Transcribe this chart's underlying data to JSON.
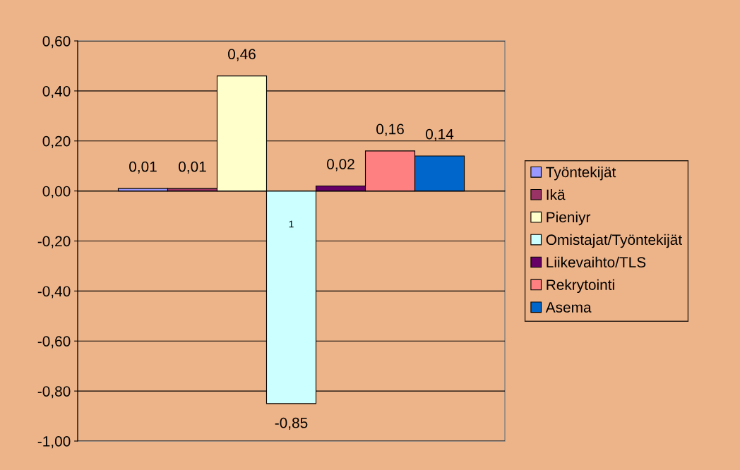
{
  "chart_data": {
    "type": "bar",
    "categories": [
      "1"
    ],
    "series": [
      {
        "name": "Työntekijät",
        "color": "#9999ff",
        "values": [
          0.01
        ],
        "value_labels": [
          "0,01"
        ]
      },
      {
        "name": "Ikä",
        "color": "#993366",
        "values": [
          0.01
        ],
        "value_labels": [
          "0,01"
        ]
      },
      {
        "name": "Pieniyr",
        "color": "#ffffcc",
        "values": [
          0.46
        ],
        "value_labels": [
          "0,46"
        ]
      },
      {
        "name": "Omistajat/Työntekijät",
        "color": "#ccffff",
        "values": [
          -0.85
        ],
        "value_labels": [
          "-0,85"
        ]
      },
      {
        "name": "Liikevaihto/TLS",
        "color": "#660066",
        "values": [
          0.02
        ],
        "value_labels": [
          "0,02"
        ]
      },
      {
        "name": "Rekrytointi",
        "color": "#ff8080",
        "values": [
          0.16
        ],
        "value_labels": [
          "0,16"
        ]
      },
      {
        "name": "Asema",
        "color": "#0066cc",
        "values": [
          0.14
        ],
        "value_labels": [
          "0,14"
        ]
      }
    ],
    "ylim": [
      -1.0,
      0.6
    ],
    "yticks": [
      {
        "value": -1.0,
        "label": "-1,00"
      },
      {
        "value": -0.8,
        "label": "-0,80"
      },
      {
        "value": -0.6,
        "label": "-0,60"
      },
      {
        "value": -0.4,
        "label": "-0,40"
      },
      {
        "value": -0.2,
        "label": "-0,20"
      },
      {
        "value": 0.0,
        "label": "0,00"
      },
      {
        "value": 0.2,
        "label": "0,20"
      },
      {
        "value": 0.4,
        "label": "0,40"
      },
      {
        "value": 0.6,
        "label": "0,60"
      }
    ],
    "grid": "y",
    "legend": "right"
  }
}
